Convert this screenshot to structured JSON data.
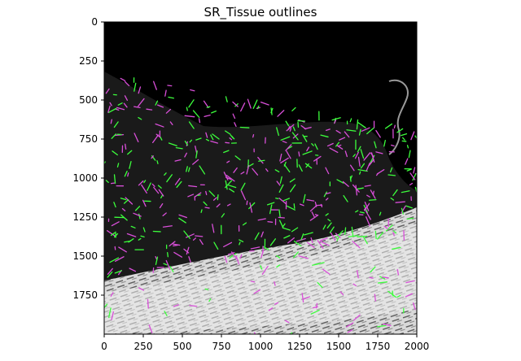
{
  "figure": {
    "title": "SR_Tissue outlines"
  },
  "axes": {
    "x_ticks": [
      "0",
      "250",
      "500",
      "750",
      "1000",
      "1250",
      "1500",
      "1750",
      "2000"
    ],
    "y_ticks": [
      "0",
      "250",
      "500",
      "750",
      "1000",
      "1250",
      "1500",
      "1750"
    ],
    "x_range": [
      0,
      2000
    ],
    "y_range": [
      0,
      2000
    ],
    "y_inverted": true
  },
  "image": {
    "content": "grayscale tissue micrograph with green and magenta outline overlays",
    "colors": {
      "background": "#000000",
      "tissue": "#e8e8e8",
      "outline_green": "#3cff3c",
      "outline_magenta": "#d94fd9"
    }
  }
}
